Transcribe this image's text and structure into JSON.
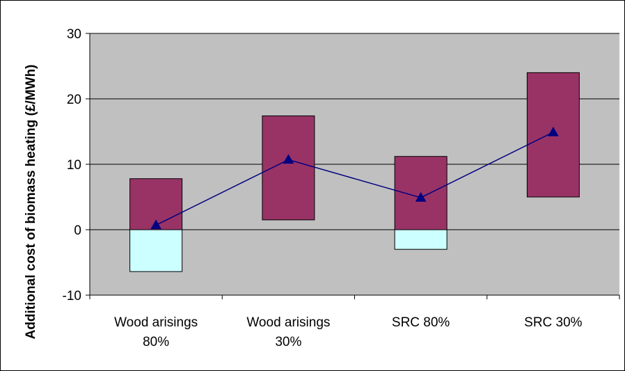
{
  "chart_data": {
    "type": "bar",
    "subtype": "floating-range-bars-with-line",
    "categories": [
      [
        "Wood arisings",
        "80%"
      ],
      [
        "Wood arisings",
        "30%"
      ],
      [
        "SRC 80%"
      ],
      [
        "SRC 30%"
      ]
    ],
    "ylabel": "Additional cost of biomass heating (£/MWh)",
    "xlabel": "",
    "ylim": [
      -10,
      30
    ],
    "yticks": [
      -10,
      0,
      10,
      20,
      30
    ],
    "grid": true,
    "legend": "none",
    "series": [
      {
        "kind": "range",
        "values": [
          [
            0,
            7.8
          ],
          [
            1.5,
            17.4
          ],
          [
            0,
            11.2
          ],
          [
            5,
            24
          ]
        ],
        "color": "#993366"
      },
      {
        "kind": "range",
        "values": [
          [
            -6.4,
            0
          ],
          null,
          [
            -3,
            0
          ],
          null
        ],
        "color": "#CCFFFF"
      },
      {
        "kind": "line",
        "marker": "triangle",
        "values": [
          0.7,
          10.7,
          4.9,
          14.9
        ],
        "color": "#000080"
      }
    ],
    "plot_background": "#C0C0C0"
  }
}
